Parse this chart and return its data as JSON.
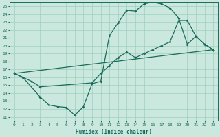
{
  "xlabel": "Humidex (Indice chaleur)",
  "xlim": [
    -0.5,
    23.5
  ],
  "ylim": [
    10.5,
    25.5
  ],
  "yticks": [
    11,
    12,
    13,
    14,
    15,
    16,
    17,
    18,
    19,
    20,
    21,
    22,
    23,
    24,
    25
  ],
  "xticks": [
    0,
    1,
    2,
    3,
    4,
    5,
    6,
    7,
    8,
    9,
    10,
    11,
    12,
    13,
    14,
    15,
    16,
    17,
    18,
    19,
    20,
    21,
    22,
    23
  ],
  "bg_color": "#cbe8df",
  "grid_color": "#9fcfbf",
  "line_color": "#1a6b5a",
  "line1_x": [
    0,
    1,
    3,
    4,
    5,
    6,
    7,
    8,
    9,
    10,
    11,
    12,
    13,
    14,
    15,
    16,
    17,
    18,
    19,
    20,
    21,
    22,
    23
  ],
  "line1_y": [
    16.5,
    16.0,
    13.5,
    12.5,
    12.3,
    12.2,
    11.2,
    12.3,
    15.2,
    15.5,
    21.3,
    22.9,
    24.5,
    24.4,
    25.3,
    25.5,
    25.3,
    24.8,
    23.5,
    20.2,
    21.2,
    20.2,
    19.5
  ],
  "line2_x": [
    0,
    1,
    2,
    3,
    9,
    10,
    11,
    12,
    13,
    14,
    15,
    16,
    17,
    18,
    19,
    20,
    21,
    22,
    23
  ],
  "line2_y": [
    16.5,
    16.0,
    15.5,
    14.8,
    15.3,
    16.5,
    17.5,
    18.5,
    19.2,
    18.5,
    19.0,
    19.5,
    20.0,
    20.5,
    23.2,
    23.2,
    21.2,
    20.2,
    19.5
  ],
  "line3_x": [
    0,
    23
  ],
  "line3_y": [
    16.5,
    19.5
  ]
}
